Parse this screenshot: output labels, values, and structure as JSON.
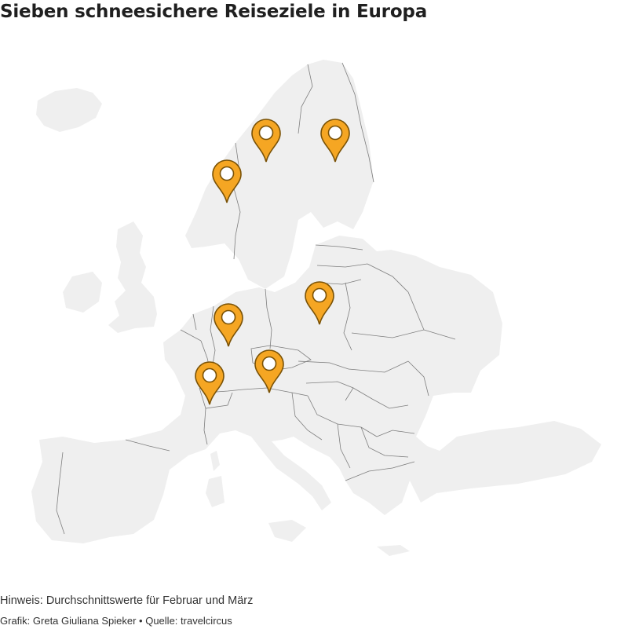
{
  "title": "Sieben schneesichere Reiseziele in Europa",
  "map": {
    "region": "Europa",
    "land_color": "#efefef",
    "border_color": "#7e7e7e",
    "marker_color": "#f5a623",
    "markers": [
      {
        "id": "marker-1",
        "icon": "map-pin-icon"
      },
      {
        "id": "marker-2",
        "icon": "map-pin-icon"
      },
      {
        "id": "marker-3",
        "icon": "map-pin-icon"
      },
      {
        "id": "marker-4",
        "icon": "map-pin-icon"
      },
      {
        "id": "marker-5",
        "icon": "map-pin-icon"
      },
      {
        "id": "marker-6",
        "icon": "map-pin-icon"
      },
      {
        "id": "marker-7",
        "icon": "map-pin-icon"
      }
    ]
  },
  "footer": {
    "note": "Hinweis: Durchschnittswerte für Februar und März",
    "credit_prefix": "Grafik: Greta Giuliana Spieker",
    "separator": "•",
    "source": "Quelle: travelcircus"
  }
}
